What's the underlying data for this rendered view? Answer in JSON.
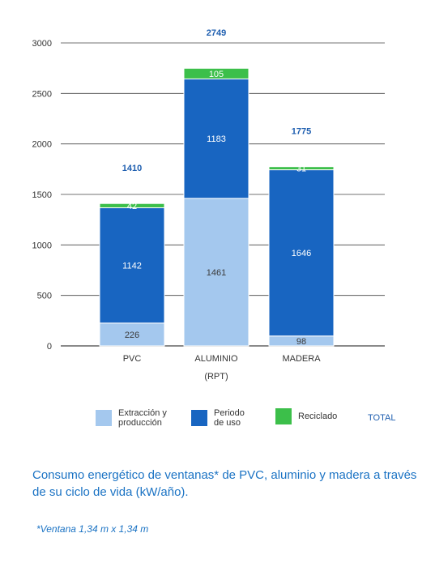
{
  "chart_data": {
    "type": "bar",
    "stacked": true,
    "categories": [
      "PVC",
      "ALUMINIO",
      "MADERA"
    ],
    "category_sublabels": [
      "",
      "(RPT)",
      ""
    ],
    "series": [
      {
        "name": "Extracción y\nproducción",
        "values": [
          226,
          1461,
          98
        ],
        "color": "#a4c8ee",
        "label_color": "#3a3a3a"
      },
      {
        "name": "Periodo\nde uso",
        "values": [
          1142,
          1183,
          1646
        ],
        "color": "#1865c1",
        "label_color": "#ffffff"
      },
      {
        "name": "Reciclado",
        "values": [
          42,
          105,
          31
        ],
        "color": "#3cbf4a",
        "label_color": "#ffffff"
      }
    ],
    "totals": [
      1410,
      2749,
      1775
    ],
    "total_label": "TOTAL",
    "ylim": [
      0,
      3000
    ],
    "yticks": [
      0,
      500,
      1000,
      1500,
      2000,
      2500,
      3000
    ],
    "grid": true,
    "legend_position": "bottom",
    "colors": {
      "axis_text": "#333333",
      "grid": "#444444",
      "total": "#1f5fb0"
    }
  },
  "caption": "Consumo energético de  ventanas* de PVC, aluminio y madera a través de su ciclo de vida (kW/año).",
  "footnote": "*Ventana 1,34 m x 1,34 m"
}
